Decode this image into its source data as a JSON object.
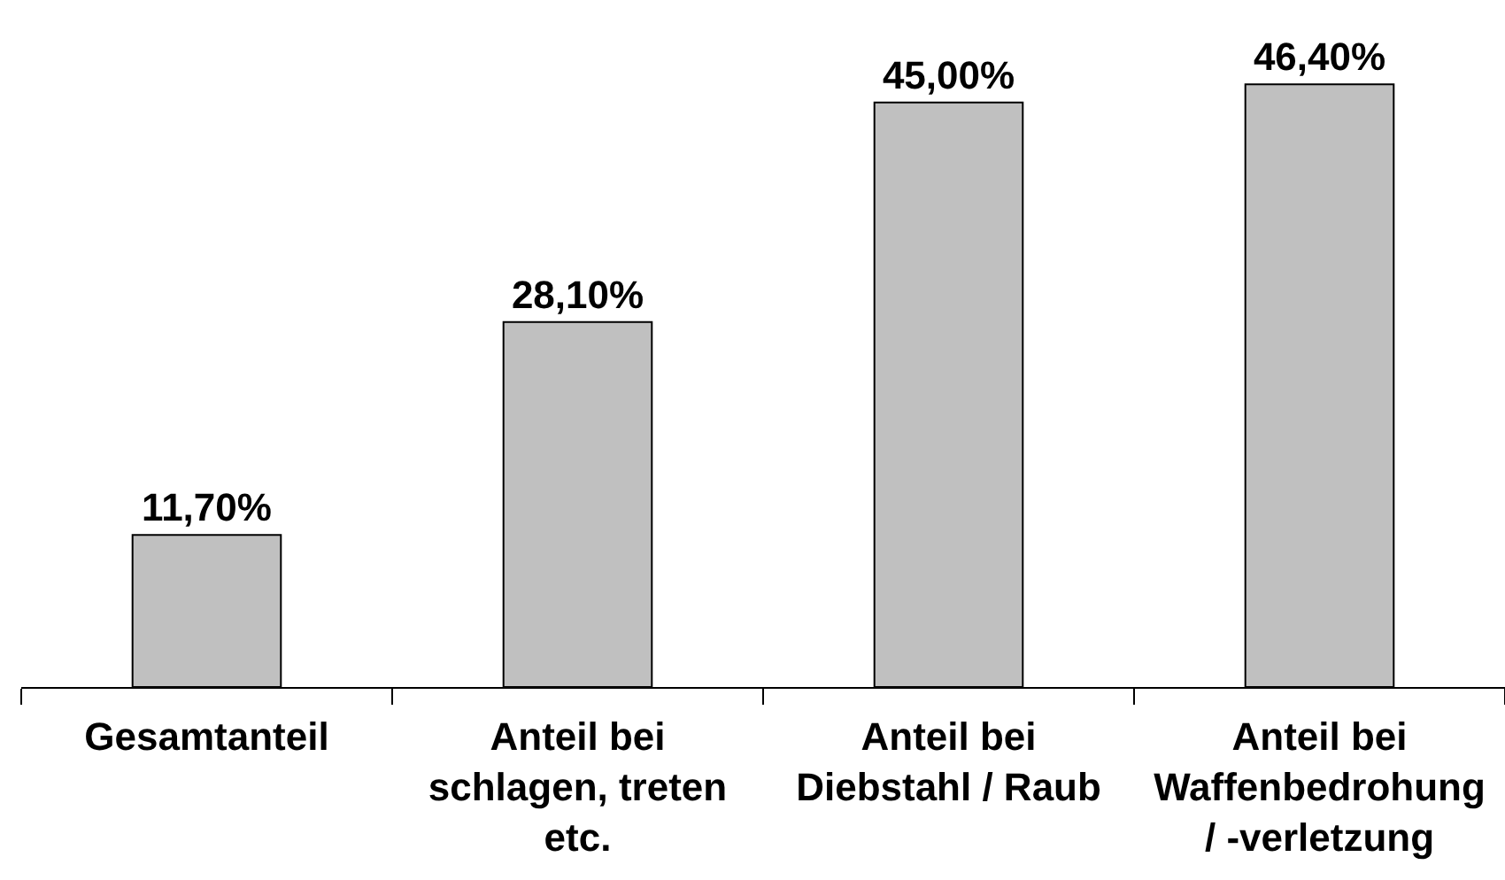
{
  "chart_data": {
    "type": "bar",
    "categories": [
      "Gesamtanteil",
      "Anteil bei schlagen, treten etc.",
      "Anteil bei Diebstahl / Raub",
      "Anteil bei Waffenbedrohung / -verletzung"
    ],
    "values": [
      11.7,
      28.1,
      45.0,
      46.4
    ],
    "value_labels": [
      "11,70%",
      "28,10%",
      "45,00%",
      "46,40%"
    ],
    "color": "#c0c0c0"
  }
}
